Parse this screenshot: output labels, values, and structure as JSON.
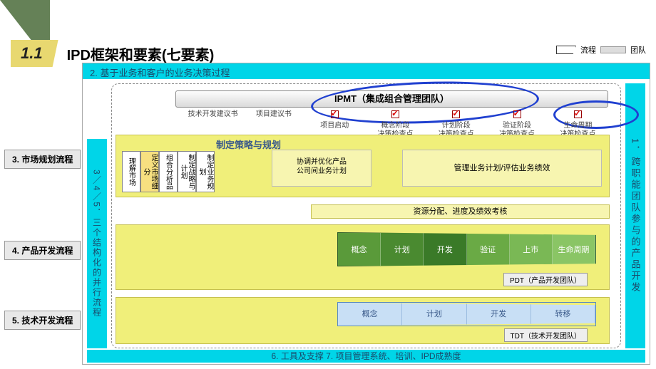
{
  "header": {
    "num": "1.1",
    "title": "IPD框架和要素(七要素)"
  },
  "legend": {
    "flow": "流程",
    "team": "团队"
  },
  "bars": {
    "top": "2.  基于业务和客户的业务决策过程",
    "left": "3／4／5．三个结构化的并行流程",
    "right": "1．跨职能团队参与的产品开发",
    "bottom": "6. 工具及支撑      7. 项目管理系统、培训、IPD成熟度"
  },
  "ipmt": "IPMT（集成组合管理团队）",
  "gates": [
    "技术开发建议书",
    "项目建议书",
    "项目启动",
    "概念阶段\n决策检查点",
    "计划阶段\n决策检查点",
    "验证阶段\n决策检查点",
    "生命周期\n决策检查点"
  ],
  "ext_labels": {
    "l3": "3. 市场规划流程",
    "l4": "4. 产品开发流程",
    "l5": "5. 技术开发流程"
  },
  "y1": {
    "title": "制定策略与规划",
    "boxes": [
      "理解市场",
      "定义市场细分",
      "组合分析品",
      "制定战略与计划",
      "制定业务规划"
    ],
    "mid": "协调并优化产品\n公司间业务计划",
    "right": "管理业务计划/评估业务绩效"
  },
  "strip1": "资源分配、进度及绩效考核",
  "pdt": {
    "phases": [
      "概念",
      "计划",
      "开发",
      "验证",
      "上市",
      "生命周期"
    ],
    "colors": [
      "#5a9a3a",
      "#4a8a30",
      "#3a7a28",
      "#6aaa45",
      "#7ab855",
      "#8ac565"
    ],
    "label": "PDT（产品开发团队）"
  },
  "tdt": {
    "phases": [
      "概念",
      "计划",
      "开发",
      "转移"
    ],
    "bg": "#c8dff5",
    "label": "TDT（技术开发团队）"
  },
  "colors": {
    "cyan": "#00d5e8",
    "yellow": "#f0ef7a",
    "ellipse": "#2040d0"
  }
}
